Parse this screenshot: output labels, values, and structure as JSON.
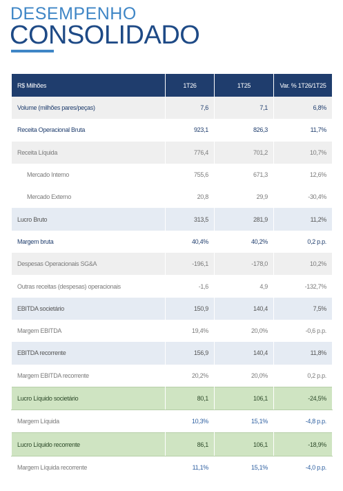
{
  "header": {
    "title_line1": "DESEMPENHO",
    "title_line2": "CONSOLIDADO"
  },
  "table": {
    "columns": [
      "R$ Milhões",
      "1T26",
      "1T25",
      "Var. % 1T26/1T25"
    ],
    "rows": [
      [
        "Volume (milhões pares/peças)",
        "7,6",
        "7,1",
        "6,8%"
      ],
      [
        "Receita Operacional Bruta",
        "923,1",
        "826,3",
        "11,7%"
      ],
      [
        "Receita Líquida",
        "776,4",
        "701,2",
        "10,7%"
      ],
      [
        "Mercado Interno",
        "755,6",
        "671,3",
        "12,6%"
      ],
      [
        "Mercado Externo",
        "20,8",
        "29,9",
        "-30,4%"
      ],
      [
        "Lucro Bruto",
        "313,5",
        "281,9",
        "11,2%"
      ],
      [
        "Margem bruta",
        "40,4%",
        "40,2%",
        "0,2 p.p."
      ],
      [
        "Despesas Operacionais SG&A",
        "-196,1",
        "-178,0",
        "10,2%"
      ],
      [
        "Outras receitas (despesas) operacionais",
        "-1,6",
        "4,9",
        "-132,7%"
      ],
      [
        "EBITDA societário",
        "150,9",
        "140,4",
        "7,5%"
      ],
      [
        "Margem EBITDA",
        "19,4%",
        "20,0%",
        "-0,6 p.p."
      ],
      [
        "EBITDA recorrente",
        "156,9",
        "140,4",
        "11,8%"
      ],
      [
        "Margem EBITDA recorrente",
        "20,2%",
        "20,0%",
        "0,2 p.p."
      ],
      [
        "Lucro Líquido societário",
        "80,1",
        "106,1",
        "-24,5%"
      ],
      [
        "Margem Líquida",
        "10,3%",
        "15,1%",
        "-4,8 p.p."
      ],
      [
        "Lucro Líquido recorrente",
        "86,1",
        "106,1",
        "-18,9%"
      ],
      [
        "Margem Líquida recorrente",
        "11,1%",
        "15,1%",
        "-4,0 p.p."
      ]
    ]
  }
}
